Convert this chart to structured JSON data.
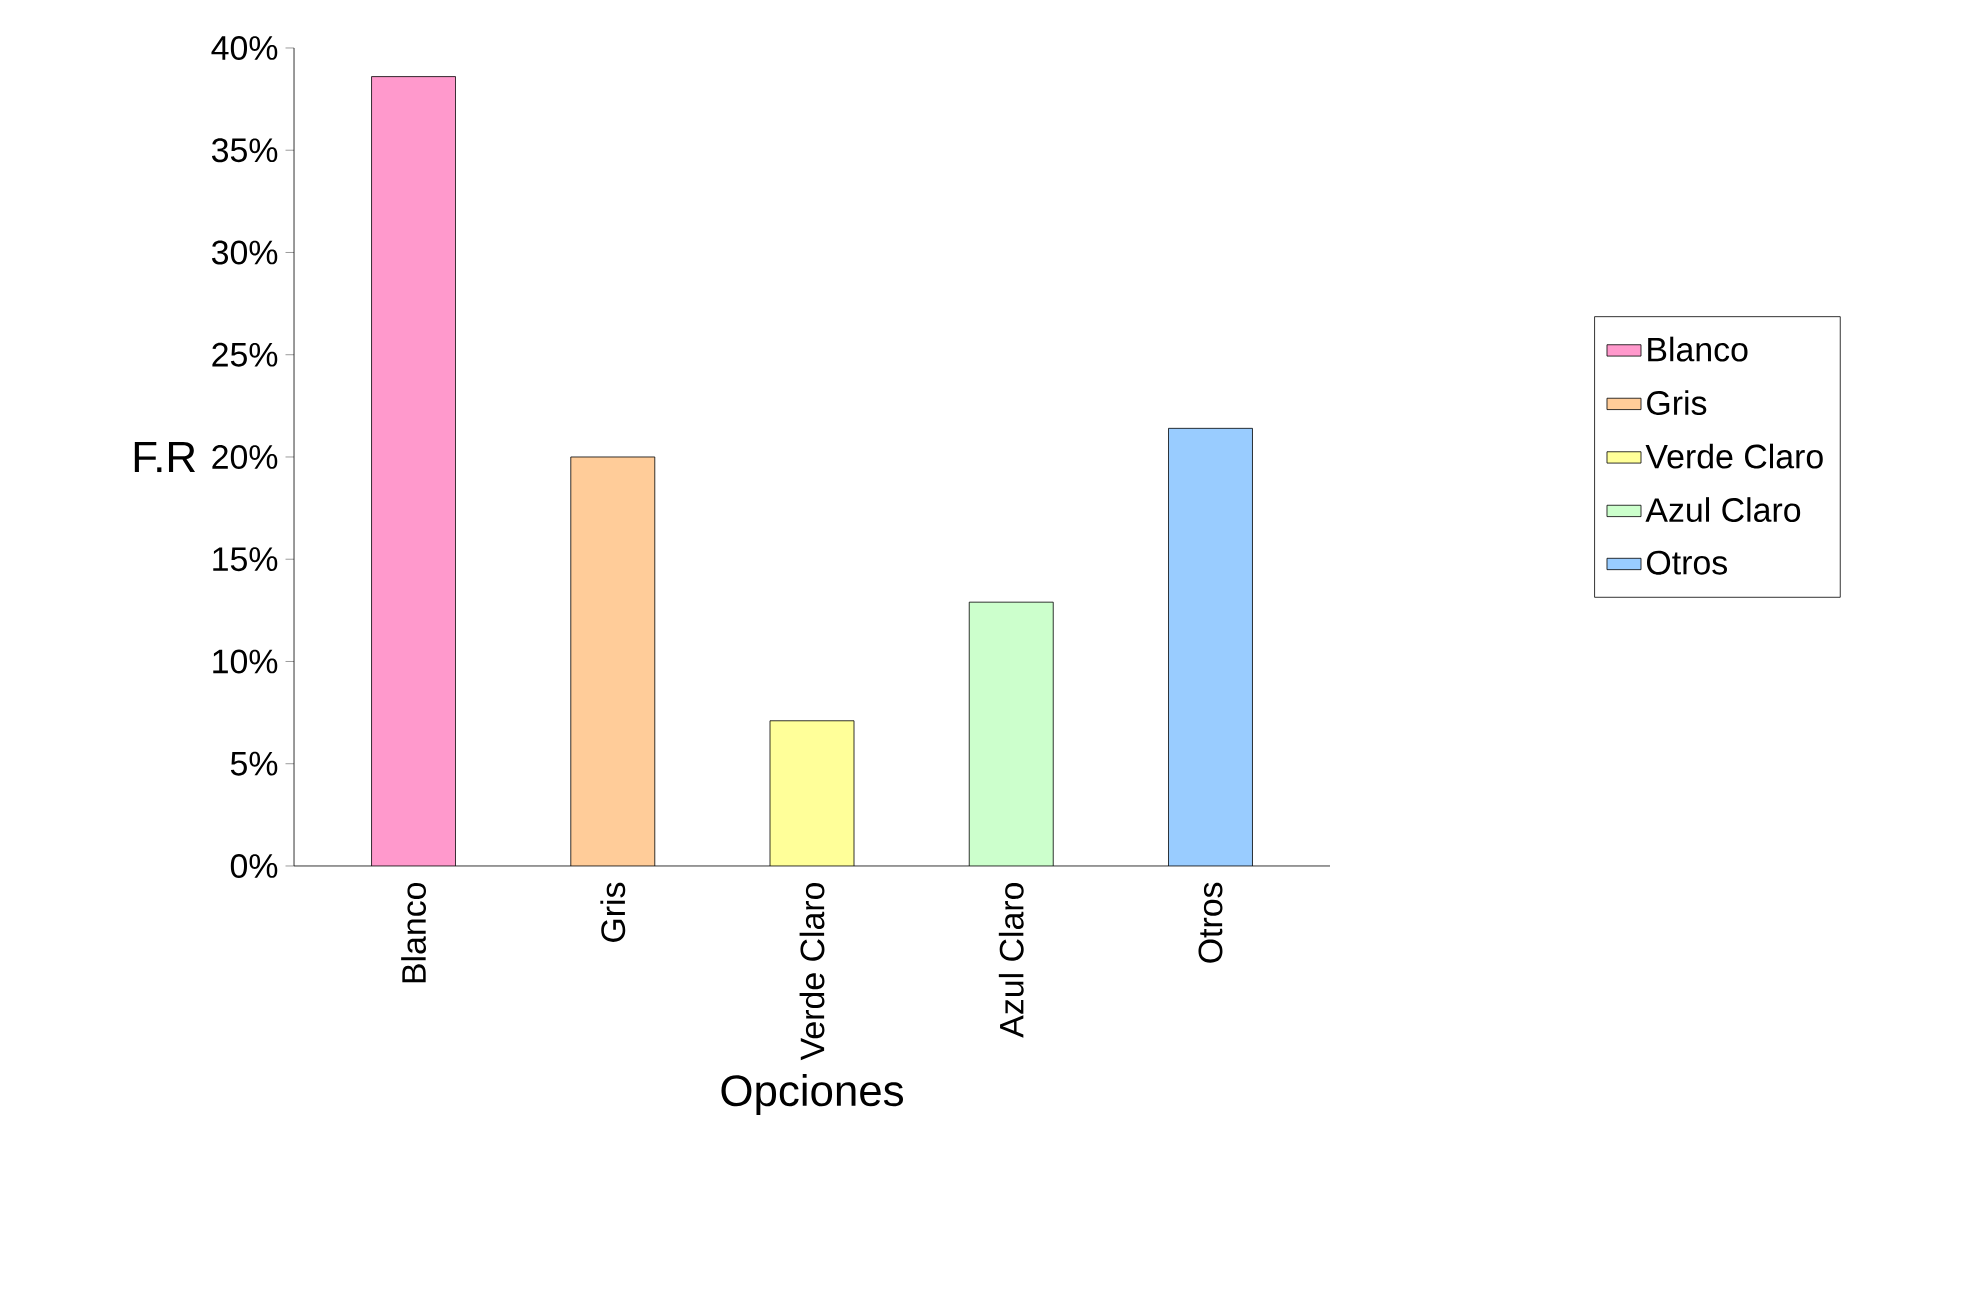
{
  "chart_data": {
    "type": "bar",
    "xlabel": "Opciones",
    "ylabel": "F.R",
    "categories": [
      "Blanco",
      "Gris",
      "Verde Claro",
      "Azul Claro",
      "Otros"
    ],
    "series": [
      {
        "name": "Blanco",
        "color": "#ff99cc",
        "values": [
          38.6,
          null,
          null,
          null,
          null
        ]
      },
      {
        "name": "Gris",
        "color": "#ffcc99",
        "values": [
          null,
          20.0,
          null,
          null,
          null
        ]
      },
      {
        "name": "Verde Claro",
        "color": "#ffff99",
        "values": [
          null,
          null,
          7.1,
          null,
          null
        ]
      },
      {
        "name": "Azul Claro",
        "color": "#ccffcc",
        "values": [
          null,
          null,
          null,
          12.9,
          null
        ]
      },
      {
        "name": "Otros",
        "color": "#99ccff",
        "values": [
          null,
          null,
          null,
          null,
          21.4
        ]
      }
    ],
    "ylim": [
      0,
      40
    ],
    "yticks": [
      {
        "value": 0,
        "label": "0%"
      },
      {
        "value": 5,
        "label": "5%"
      },
      {
        "value": 10,
        "label": "10%"
      },
      {
        "value": 15,
        "label": "15%"
      },
      {
        "value": 20,
        "label": "20%"
      },
      {
        "value": 25,
        "label": "25%"
      },
      {
        "value": 30,
        "label": "30%"
      },
      {
        "value": 35,
        "label": "35%"
      },
      {
        "value": 40,
        "label": "40%"
      }
    ],
    "grid": false,
    "legend": "right"
  }
}
